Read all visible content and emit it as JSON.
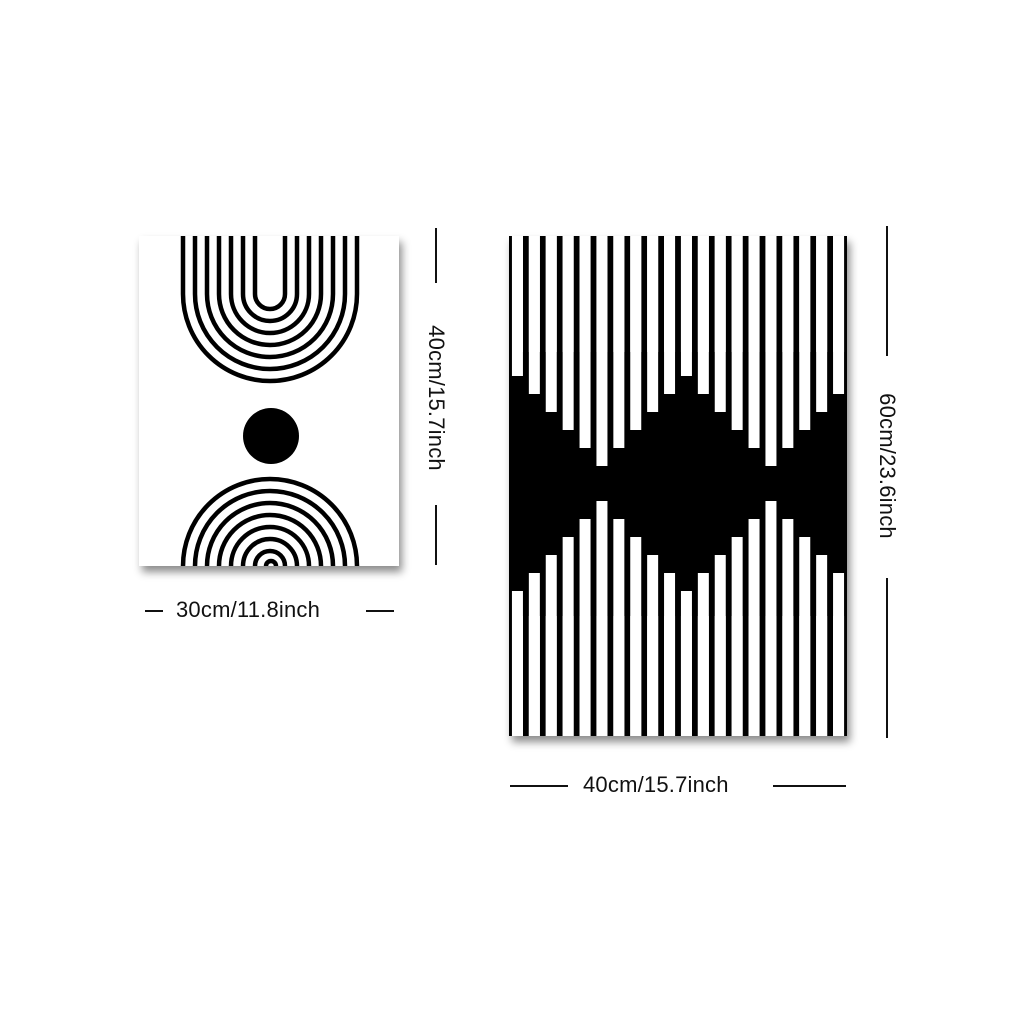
{
  "artworks": [
    {
      "name": "arch-sun-print",
      "width_label": "30cm/11.8inch",
      "height_label": "40cm/15.7inch"
    },
    {
      "name": "striped-diamond-print",
      "width_label": "40cm/15.7inch",
      "height_label": "60cm/23.6inch"
    }
  ],
  "colors": {
    "ink": "#000000",
    "paper": "#ffffff",
    "background": "#ffffff"
  }
}
